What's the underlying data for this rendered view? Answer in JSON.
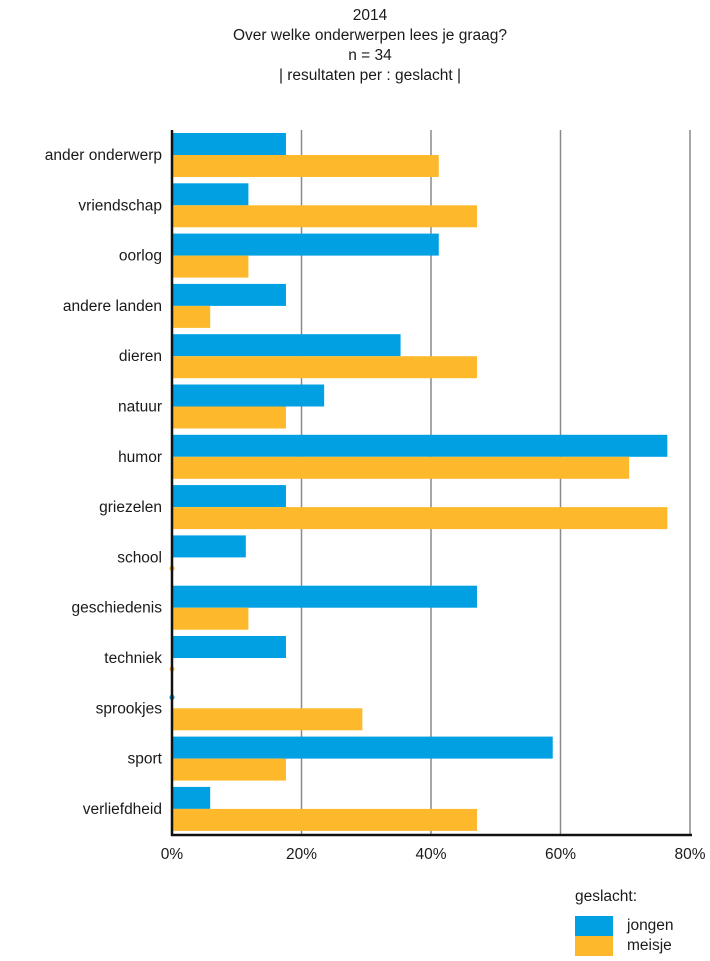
{
  "chart_data": {
    "type": "bar",
    "orientation": "horizontal",
    "title_lines": [
      "2014",
      "Over welke onderwerpen lees je graag?",
      "n = 34",
      "| resultaten per : geslacht |"
    ],
    "categories": [
      "ander onderwerp",
      "vriendschap",
      "oorlog",
      "andere landen",
      "dieren",
      "natuur",
      "humor",
      "griezelen",
      "school",
      "geschiedenis",
      "techniek",
      "sprookjes",
      "sport",
      "verliefdheid"
    ],
    "series": [
      {
        "name": "jongen",
        "color": "#00a0e2",
        "values": [
          17.6,
          11.8,
          41.2,
          17.6,
          35.3,
          23.5,
          76.5,
          17.6,
          11.4,
          47.1,
          17.6,
          0,
          58.8,
          5.9
        ]
      },
      {
        "name": "meisje",
        "color": "#fdb92b",
        "values": [
          41.2,
          47.1,
          11.8,
          5.9,
          47.1,
          17.6,
          70.6,
          76.5,
          0,
          11.8,
          0,
          29.4,
          17.6,
          47.1
        ]
      }
    ],
    "xlim": [
      0,
      80
    ],
    "xticks": [
      0,
      20,
      40,
      60,
      80
    ],
    "xtick_labels": [
      "0%",
      "20%",
      "40%",
      "60%",
      "80%"
    ],
    "grid": true,
    "legend": {
      "title": "geslacht:",
      "placement": "bottom-right"
    }
  }
}
